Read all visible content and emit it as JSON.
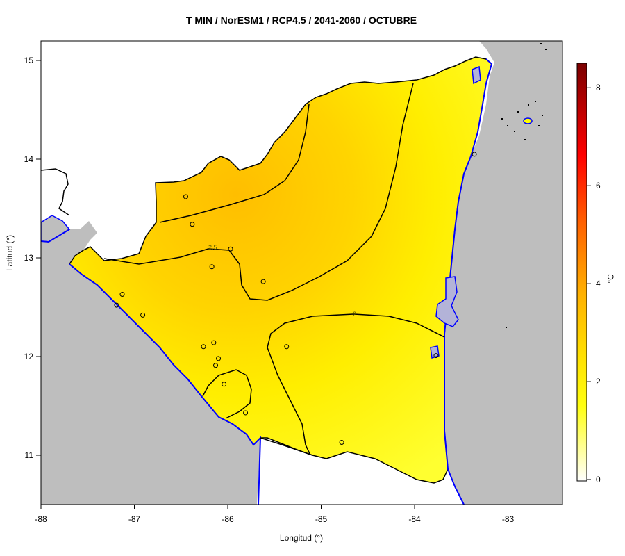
{
  "map": {
    "title": "T MIN / NorESM1 / RCP4.5 / 2041-2060 / OCTUBRE",
    "xlabel": "Longitud (°)",
    "ylabel": "Latitud (°)",
    "x_ticks": [
      "-88",
      "-87",
      "-86",
      "-85",
      "-84",
      "-83"
    ],
    "y_ticks": [
      "11",
      "12",
      "13",
      "14",
      "15"
    ],
    "colorbar": {
      "unit": "°C",
      "ticks": [
        "0",
        "2",
        "4",
        "6",
        "8"
      ],
      "colors": [
        "#ffffff",
        "#ffff00",
        "#ffd000",
        "#ffa000",
        "#ff3000",
        "#b00000",
        "#800000"
      ]
    },
    "contour_labels": [
      "2.5",
      "2"
    ],
    "colors": {
      "land_outside": "#bebebe",
      "water": "#b3b3d8",
      "coast": "#0000ff",
      "border": "#000000",
      "field_high": "#ffbf00",
      "field_low": "#ffff20"
    }
  },
  "chart_data": {
    "type": "heatmap",
    "title": "T MIN / NorESM1 / RCP4.5 / 2041-2060 / OCTUBRE",
    "xlabel": "Longitud (°)",
    "ylabel": "Latitud (°)",
    "xlim": [
      -88,
      -82.4
    ],
    "ylim": [
      10.5,
      15.2
    ],
    "color_scale": {
      "min": 0,
      "max": 8.5,
      "label": "°C"
    },
    "contour_levels": [
      2,
      2.5
    ],
    "stations": [
      {
        "lon": -86.45,
        "lat": 13.62
      },
      {
        "lon": -86.38,
        "lat": 13.34
      },
      {
        "lon": -85.97,
        "lat": 13.09
      },
      {
        "lon": -86.17,
        "lat": 12.91
      },
      {
        "lon": -85.62,
        "lat": 12.76
      },
      {
        "lon": -87.13,
        "lat": 12.63
      },
      {
        "lon": -87.19,
        "lat": 12.52
      },
      {
        "lon": -86.91,
        "lat": 12.42
      },
      {
        "lon": -86.15,
        "lat": 12.14
      },
      {
        "lon": -86.26,
        "lat": 12.1
      },
      {
        "lon": -85.37,
        "lat": 12.1
      },
      {
        "lon": -86.1,
        "lat": 11.98
      },
      {
        "lon": -86.13,
        "lat": 11.91
      },
      {
        "lon": -86.04,
        "lat": 11.72
      },
      {
        "lon": -85.81,
        "lat": 11.43
      },
      {
        "lon": -84.78,
        "lat": 11.13
      },
      {
        "lon": -83.77,
        "lat": 12.01
      },
      {
        "lon": -83.36,
        "lat": 14.05
      }
    ]
  }
}
